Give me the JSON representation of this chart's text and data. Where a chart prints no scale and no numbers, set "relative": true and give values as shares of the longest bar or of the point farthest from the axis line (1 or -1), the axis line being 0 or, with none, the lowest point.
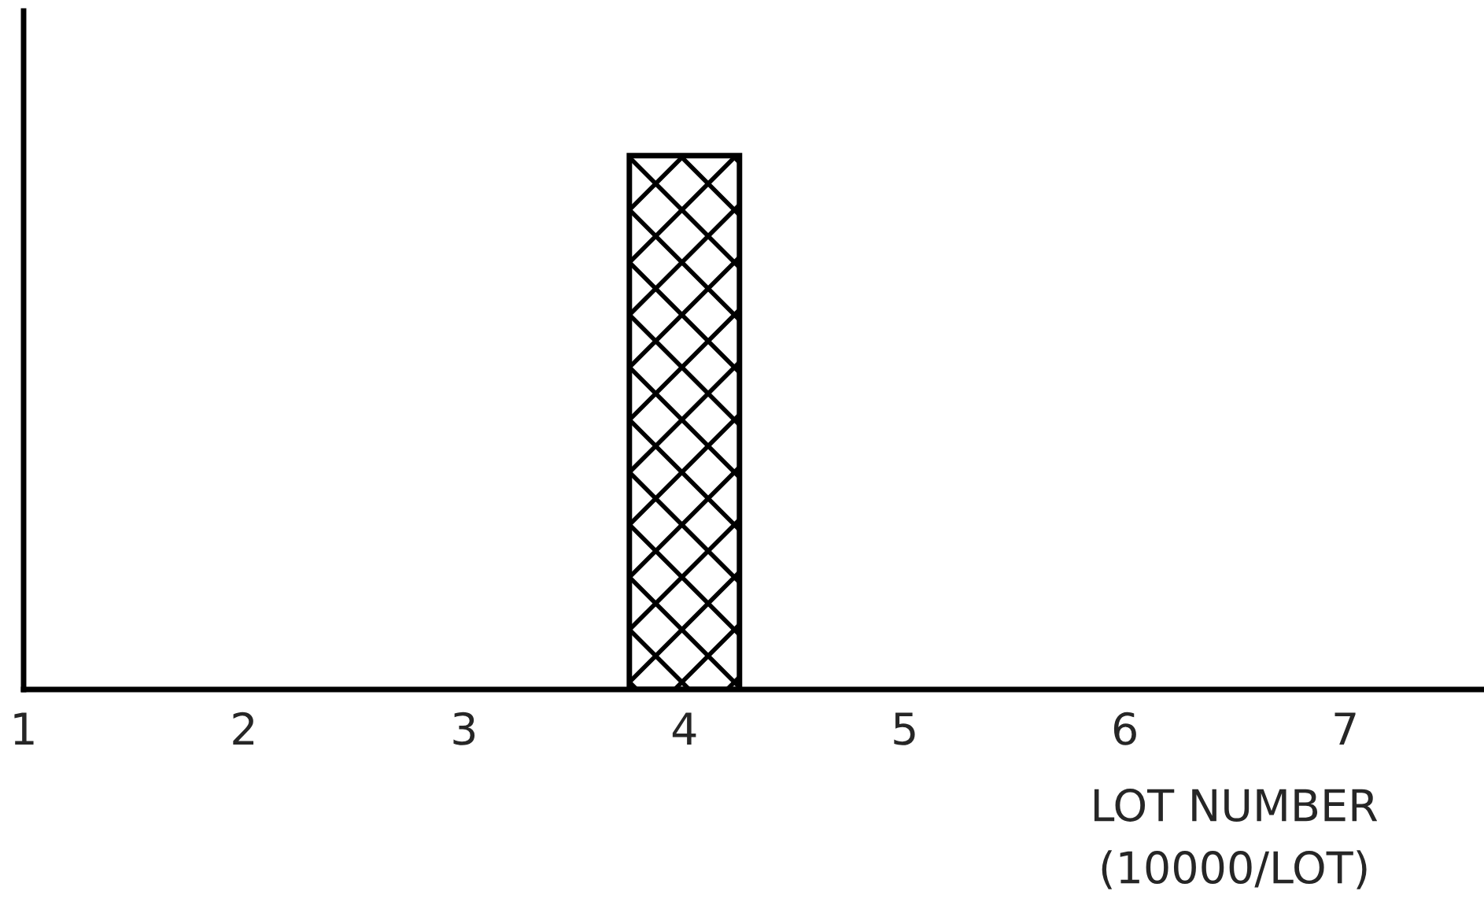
{
  "chart_data": {
    "type": "bar",
    "relative": true,
    "tick_labels": "x",
    "categories": [
      "1",
      "2",
      "3",
      "4",
      "5",
      "6",
      "7"
    ],
    "values": [
      null,
      null,
      null,
      1,
      null,
      null,
      null
    ],
    "color": "#000000",
    "xlabel": "LOT NUMBER\n(10000/LOT)"
  }
}
